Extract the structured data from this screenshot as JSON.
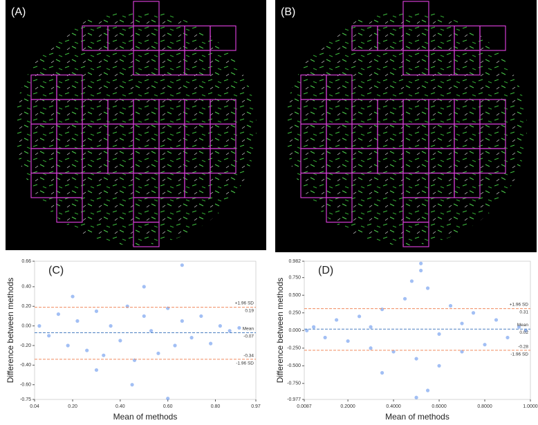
{
  "panels": [
    "(A)",
    "(B)"
  ],
  "chart_data": [
    {
      "type": "scatter",
      "panel_label": "(C)",
      "x_label": "Mean of methods",
      "y_label": "Difference between methods",
      "color": "#6495ed",
      "x": [
        0.06,
        0.1,
        0.14,
        0.18,
        0.22,
        0.26,
        0.3,
        0.33,
        0.36,
        0.4,
        0.43,
        0.46,
        0.5,
        0.53,
        0.56,
        0.6,
        0.63,
        0.66,
        0.7,
        0.74,
        0.78,
        0.82,
        0.86,
        0.9,
        0.3,
        0.5,
        0.6,
        0.66,
        0.45,
        0.2
      ],
      "values": [
        0.0,
        -0.1,
        0.12,
        -0.2,
        0.05,
        -0.25,
        0.15,
        -0.3,
        0.0,
        -0.15,
        0.2,
        -0.35,
        0.1,
        -0.05,
        -0.28,
        0.18,
        -0.2,
        0.05,
        -0.12,
        0.1,
        -0.18,
        0.0,
        -0.05,
        -0.02,
        -0.45,
        0.4,
        -0.74,
        0.62,
        -0.6,
        0.3
      ],
      "xlim": [
        0.04,
        0.97
      ],
      "xticks": [
        0.04,
        {
          "value": 0.2,
          "label": "0.20"
        },
        {
          "value": 0.4,
          "label": "0.40"
        },
        {
          "value": 0.6,
          "label": "0.60"
        },
        {
          "value": 0.8,
          "label": "0.80"
        },
        0.97
      ],
      "ylim": [
        -0.75,
        0.66
      ],
      "yticks": [
        -0.75,
        {
          "value": -0.6,
          "label": "-0.60"
        },
        {
          "value": -0.4,
          "label": "-0.40"
        },
        {
          "value": -0.2,
          "label": "-0.20"
        },
        {
          "value": 0,
          "label": "0.00"
        },
        {
          "value": 0.2,
          "label": "0.20"
        },
        {
          "value": 0.4,
          "label": "0.40"
        },
        0.66
      ],
      "lines": [
        {
          "value": 0.19,
          "label": "+1.96 SD",
          "value_label": "0.19",
          "color": "#f08a5d"
        },
        {
          "value": -0.07,
          "label": "Mean",
          "value_label": "-0.07",
          "color": "#4a7fc1"
        },
        {
          "value": -0.34,
          "label": "-1.96 SD",
          "value_label": "-0.34",
          "color": "#f08a5d"
        }
      ]
    },
    {
      "type": "scatter",
      "panel_label": "(D)",
      "x_label": "Mean of methods",
      "y_label": "Difference between methods",
      "color": "#6495ed",
      "x": [
        0.02,
        0.05,
        0.1,
        0.15,
        0.2,
        0.25,
        0.3,
        0.35,
        0.4,
        0.45,
        0.5,
        0.52,
        0.55,
        0.6,
        0.65,
        0.7,
        0.75,
        0.8,
        0.85,
        0.9,
        0.95,
        0.98,
        0.5,
        0.52,
        0.55,
        0.48,
        0.35,
        0.7,
        0.3,
        0.6
      ],
      "values": [
        0.0,
        0.05,
        -0.1,
        0.15,
        -0.15,
        0.2,
        -0.25,
        0.3,
        -0.3,
        0.45,
        -0.4,
        0.95,
        0.6,
        -0.5,
        0.35,
        -0.3,
        0.25,
        -0.2,
        0.15,
        -0.1,
        0.05,
        0.0,
        -0.95,
        0.85,
        -0.85,
        0.7,
        -0.6,
        0.1,
        0.05,
        -0.05
      ],
      "xlim": [
        0.0087,
        1.0
      ],
      "xticks": [
        0.0087,
        {
          "value": 0.2,
          "label": "0.2000"
        },
        {
          "value": 0.4,
          "label": "0.4000"
        },
        {
          "value": 0.6,
          "label": "0.6000"
        },
        {
          "value": 0.8,
          "label": "0.8000"
        },
        {
          "value": 1.0,
          "label": "1.0000"
        }
      ],
      "ylim": [
        -0.977,
        0.982
      ],
      "yticks": [
        -0.977,
        {
          "value": -0.75,
          "label": "-0.750"
        },
        {
          "value": -0.5,
          "label": "-0.500"
        },
        {
          "value": -0.25,
          "label": "-0.250"
        },
        {
          "value": 0,
          "label": "0.000"
        },
        {
          "value": 0.25,
          "label": "0.250"
        },
        {
          "value": 0.5,
          "label": "0.500"
        },
        {
          "value": 0.75,
          "label": "0.750"
        },
        0.982
      ],
      "lines": [
        {
          "value": 0.31,
          "label": "+1.96 SD",
          "value_label": "0.31",
          "color": "#f08a5d"
        },
        {
          "value": 0.02,
          "label": "Mean",
          "value_label": "0.02",
          "color": "#4a7fc1"
        },
        {
          "value": -0.28,
          "label": "-1.96 SD",
          "value_label": "-0.28",
          "color": "#f08a5d"
        }
      ]
    }
  ]
}
